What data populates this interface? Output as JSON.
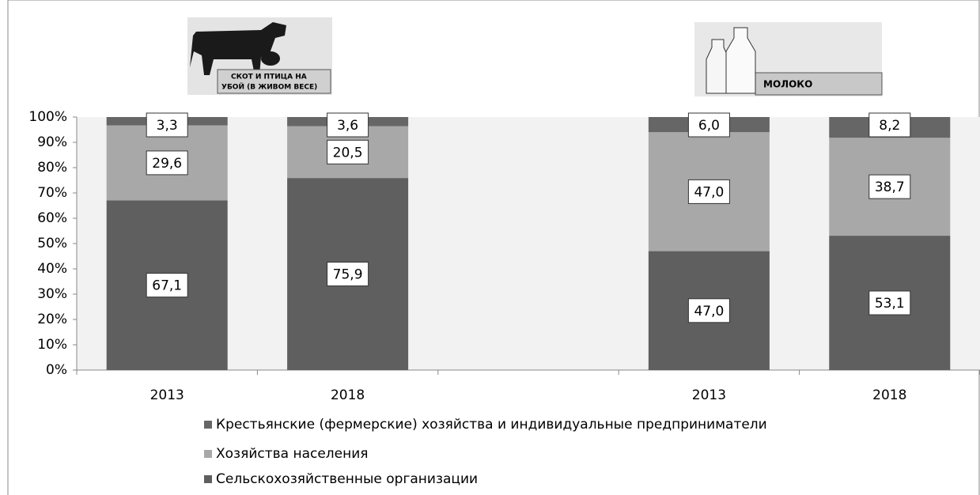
{
  "chart_data": {
    "type": "stacked-bar",
    "annotations": [
      "СКОТ И ПТИЦА НА",
      "УБОЙ (В ЖИВОМ ВЕСЕ)",
      "МОЛОКО"
    ],
    "categories": [
      "2013",
      "2018",
      null,
      "2013",
      "2018"
    ],
    "series": [
      {
        "name": "Сельскохозяйственные организации",
        "color": "#5f5f5f",
        "values": [
          67.1,
          75.9,
          null,
          47.0,
          53.1
        ],
        "value_labels": [
          "67,1",
          "75,9",
          null,
          "47,0",
          "53,1"
        ]
      },
      {
        "name": "Хозяйства населения",
        "color": "#a8a8a8",
        "values": [
          29.6,
          20.5,
          null,
          47.0,
          38.7
        ],
        "value_labels": [
          "29,6",
          "20,5",
          null,
          "47,0",
          "38,7"
        ]
      },
      {
        "name": "Крестьянские (фермерские) хозяйства и индивидуальные предприниматели",
        "color": "#666666",
        "values": [
          3.3,
          3.6,
          null,
          6.0,
          8.2
        ],
        "value_labels": [
          "3,3",
          "3,6",
          null,
          "6,0",
          "8,2"
        ]
      }
    ],
    "ylim": [
      0,
      100
    ],
    "yticks": [
      {
        "value": 0,
        "label": "0%"
      },
      {
        "value": 10,
        "label": "10%"
      },
      {
        "value": 20,
        "label": "20%"
      },
      {
        "value": 30,
        "label": "30%"
      },
      {
        "value": 40,
        "label": "40%"
      },
      {
        "value": 50,
        "label": "50%"
      },
      {
        "value": 60,
        "label": "60%"
      },
      {
        "value": 70,
        "label": "70%"
      },
      {
        "value": 80,
        "label": "80%"
      },
      {
        "value": 90,
        "label": "90%"
      },
      {
        "value": 100,
        "label": "100%"
      }
    ]
  }
}
